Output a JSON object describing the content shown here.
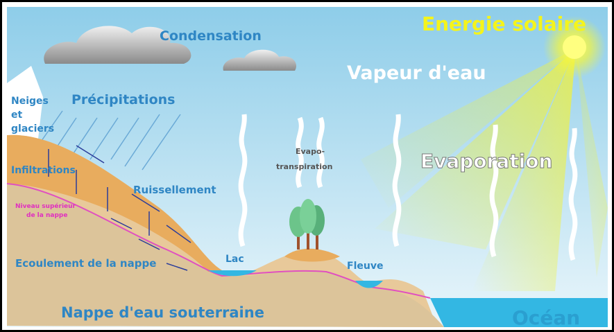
{
  "labels": {
    "condensation": "Condensation",
    "solar_energy": "Energie solaire",
    "water_vapour": "Vapeur d'eau",
    "snow_glaciers": [
      "Neiges",
      "et",
      "glaciers"
    ],
    "precipitation": "Précipitations",
    "infiltration": "Infiltrations",
    "runoff": "Ruissellement",
    "water_table": [
      "Niveau supérieur",
      "de la nappe"
    ],
    "evapotranspiration": [
      "Evapo-",
      "transpiration"
    ],
    "evaporation": "Evaporation",
    "lake": "Lac",
    "river": "Fleuve",
    "groundwater_flow": "Ecoulement de la nappe",
    "groundwater": "Nappe d'eau souterraine",
    "ocean": "Océan"
  }
}
